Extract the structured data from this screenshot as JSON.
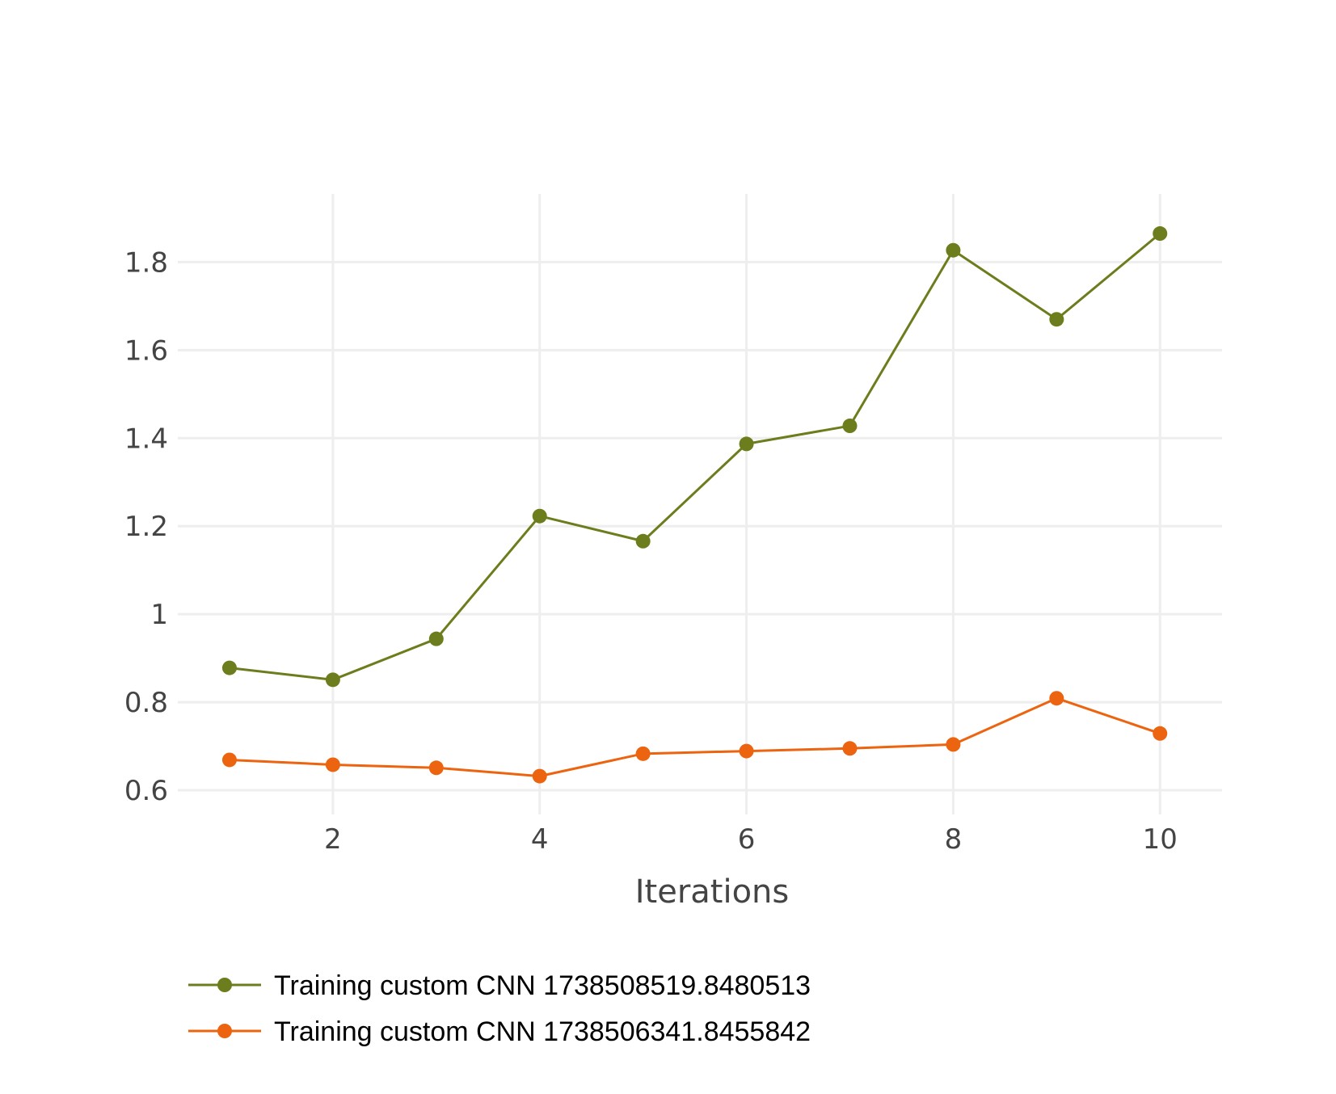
{
  "chart_data": {
    "type": "line",
    "title": "",
    "xlabel": "Iterations",
    "ylabel": "",
    "xlim": [
      0.5,
      10.6
    ],
    "ylim": [
      0.545,
      1.955
    ],
    "x_ticks": [
      2,
      4,
      6,
      8,
      10
    ],
    "y_ticks": [
      0.6,
      0.8,
      1,
      1.2,
      1.4,
      1.6,
      1.8
    ],
    "y_tick_labels": [
      "0.6",
      "0.8",
      "1",
      "1.2",
      "1.4",
      "1.6",
      "1.8"
    ],
    "grid": true,
    "legend_position": "bottom-left",
    "x": [
      1,
      2,
      3,
      4,
      5,
      6,
      7,
      8,
      9,
      10
    ],
    "series": [
      {
        "name": "Training custom CNN 1738508519.8480513",
        "color": "#6b7d1c",
        "values": [
          0.878,
          0.851,
          0.944,
          1.223,
          1.166,
          1.387,
          1.428,
          1.827,
          1.67,
          1.865
        ]
      },
      {
        "name": "Training custom CNN 1738506341.8455842",
        "color": "#ec640f",
        "values": [
          0.669,
          0.658,
          0.651,
          0.632,
          0.683,
          0.689,
          0.695,
          0.704,
          0.809,
          0.729
        ]
      }
    ]
  }
}
